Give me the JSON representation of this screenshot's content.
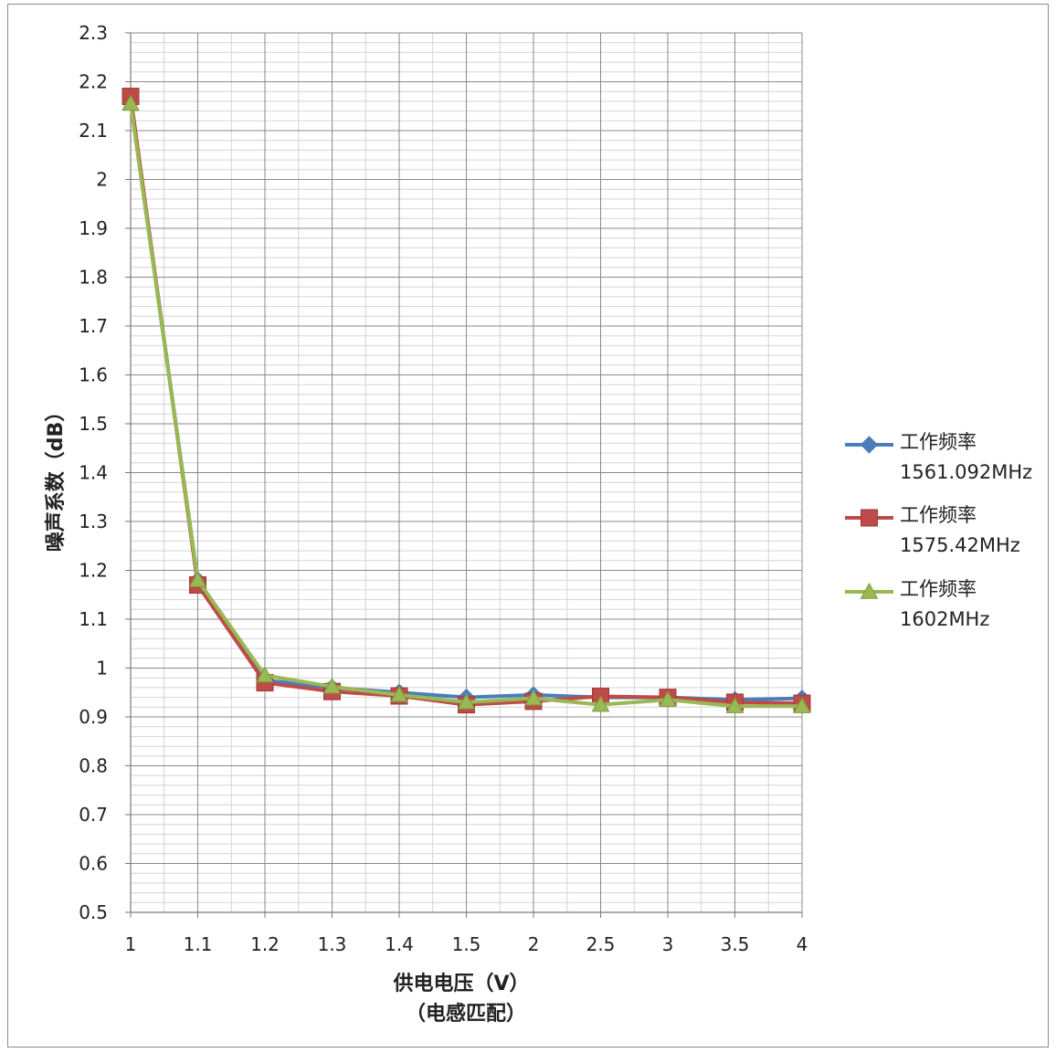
{
  "chart_data": {
    "type": "line",
    "title": "",
    "xlabel": "供电电压（V）",
    "xlabel_sub": "（电感匹配）",
    "ylabel": "噪声系数（dB）",
    "categories": [
      "1",
      "1.1",
      "1.2",
      "1.3",
      "1.4",
      "1.5",
      "2",
      "2.5",
      "3",
      "3.5",
      "4"
    ],
    "ylim": [
      0.5,
      2.3
    ],
    "ymajor": 0.1,
    "yminor": 0.02,
    "yticks": [
      "0.5",
      "0.6",
      "0.7",
      "0.8",
      "0.9",
      "1",
      "1.1",
      "1.2",
      "1.3",
      "1.4",
      "1.5",
      "1.6",
      "1.7",
      "1.8",
      "1.9",
      "2",
      "2.1",
      "2.2",
      "2.3"
    ],
    "grid": true,
    "legend_position": "right",
    "series": [
      {
        "name_line1": "工作频率",
        "name_line2": "1561.092MHz",
        "color": "#4a7ebb",
        "marker": "diamond",
        "values": [
          2.16,
          1.18,
          0.975,
          0.96,
          0.95,
          0.94,
          0.945,
          0.94,
          0.94,
          0.935,
          0.938
        ]
      },
      {
        "name_line1": "工作频率",
        "name_line2": "1575.42MHz",
        "color": "#be4b48",
        "marker": "square",
        "values": [
          2.17,
          1.17,
          0.97,
          0.952,
          0.943,
          0.925,
          0.932,
          0.942,
          0.94,
          0.93,
          0.928
        ]
      },
      {
        "name_line1": "工作频率",
        "name_line2": "1602MHz",
        "color": "#98b954",
        "marker": "triangle",
        "values": [
          2.155,
          1.18,
          0.985,
          0.962,
          0.945,
          0.93,
          0.938,
          0.925,
          0.935,
          0.922,
          0.922
        ]
      }
    ]
  }
}
